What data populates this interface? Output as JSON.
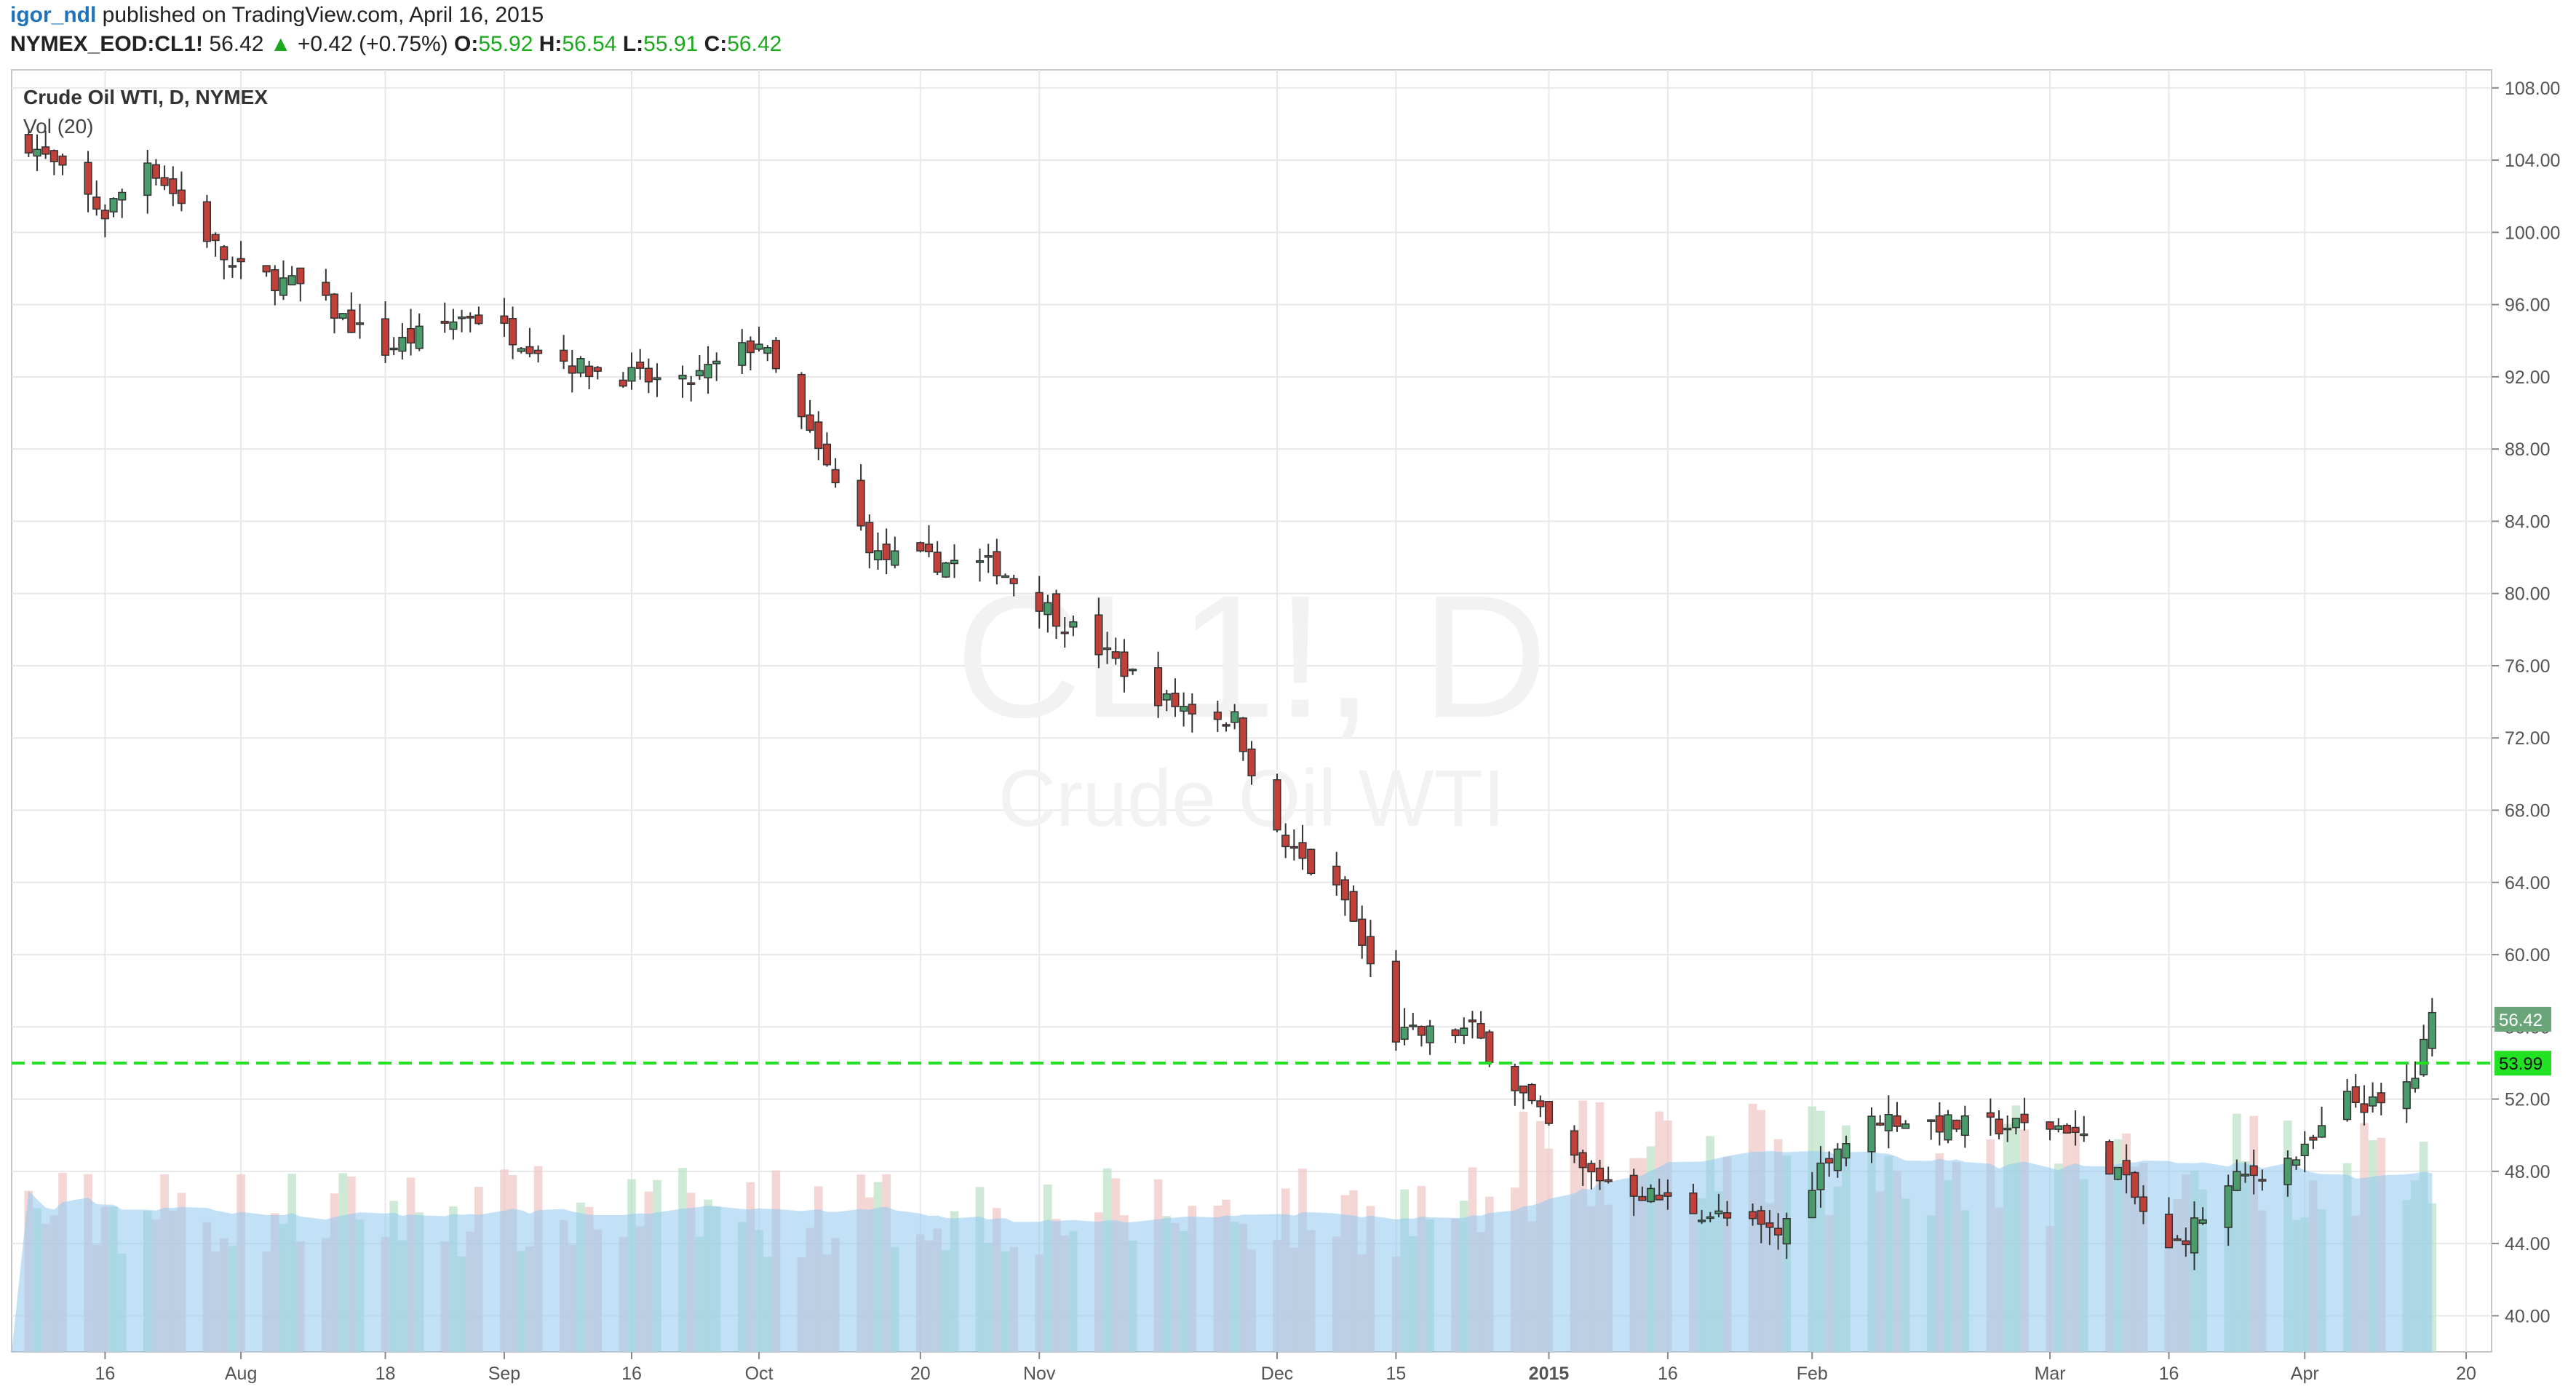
{
  "header": {
    "username": "igor_ndl",
    "published": " published on TradingView.com, April 16, 2015",
    "symbol": "NYMEX_EOD:CL1!",
    "last": "56.42",
    "arrow": "▲",
    "change": "+0.42 (+0.75%)",
    "o_label": "O:",
    "o_value": "55.92",
    "h_label": "H:",
    "h_value": "56.54",
    "l_label": "L:",
    "l_value": "55.91",
    "c_label": "C:",
    "c_value": "56.42"
  },
  "legend": {
    "series_name": "Crude Oil WTI, D, NYMEX",
    "indicator": "Vol (20)"
  },
  "watermark": {
    "line1": "CL1!, D",
    "line2": "Crude Oil WTI"
  },
  "colors": {
    "up": "#4a9c6a",
    "down": "#c1413a",
    "grid": "#e8e8e8",
    "vol_ma": "#8fc8f0",
    "vol_up": "#b9dfc4",
    "vol_down": "#f0c6c3",
    "support_line": "#22e022",
    "last_price_tag": "#6aa57a"
  },
  "price_labels": {
    "last": "56.42",
    "support": "53.99"
  },
  "chart_data": {
    "type": "candlestick",
    "title": "Crude Oil WTI, D, NYMEX",
    "ylim": [
      38,
      109
    ],
    "y_ticks": [
      "108.00",
      "104.00",
      "100.00",
      "96.00",
      "92.00",
      "88.00",
      "84.00",
      "80.00",
      "76.00",
      "72.00",
      "68.00",
      "64.00",
      "60.00",
      "56.00",
      "52.00",
      "48.00",
      "44.00",
      "40.00"
    ],
    "x_ticks": [
      "16",
      "Aug",
      "18",
      "Sep",
      "16",
      "Oct",
      "20",
      "Nov",
      "Dec",
      "15",
      "2015",
      "16",
      "Feb",
      "Mar",
      "16",
      "Apr",
      "20"
    ],
    "support_level": 53.99,
    "last_close": 56.42,
    "close_path": [
      [
        "2014-07-07",
        105
      ],
      [
        "2014-07-16",
        101
      ],
      [
        "2014-07-21",
        104
      ],
      [
        "2014-07-31",
        98
      ],
      [
        "2014-08-08",
        97
      ],
      [
        "2014-08-18",
        93.5
      ],
      [
        "2014-08-28",
        95.5
      ],
      [
        "2014-09-10",
        92.5
      ],
      [
        "2014-09-22",
        91.5
      ],
      [
        "2014-10-01",
        94
      ],
      [
        "2014-10-10",
        86
      ],
      [
        "2014-10-15",
        82
      ],
      [
        "2014-10-29",
        81.5
      ],
      [
        "2014-11-07",
        78
      ],
      [
        "2014-11-18",
        74
      ],
      [
        "2014-11-26",
        73
      ],
      [
        "2014-12-01",
        66.5
      ],
      [
        "2014-12-09",
        63
      ],
      [
        "2014-12-15",
        55.5
      ],
      [
        "2014-12-24",
        55.8
      ],
      [
        "2015-01-06",
        48
      ],
      [
        "2015-01-15",
        46.5
      ],
      [
        "2015-01-29",
        44.5
      ],
      [
        "2015-02-04",
        49
      ],
      [
        "2015-02-10",
        51
      ],
      [
        "2015-02-20",
        50.5
      ],
      [
        "2015-03-04",
        50.5
      ],
      [
        "2015-03-10",
        48
      ],
      [
        "2015-03-16",
        43.5
      ],
      [
        "2015-03-24",
        47.5
      ],
      [
        "2015-04-01",
        49
      ],
      [
        "2015-04-06",
        52
      ],
      [
        "2015-04-10",
        51.5
      ],
      [
        "2015-04-14",
        53.3
      ],
      [
        "2015-04-16",
        56.42
      ]
    ]
  }
}
